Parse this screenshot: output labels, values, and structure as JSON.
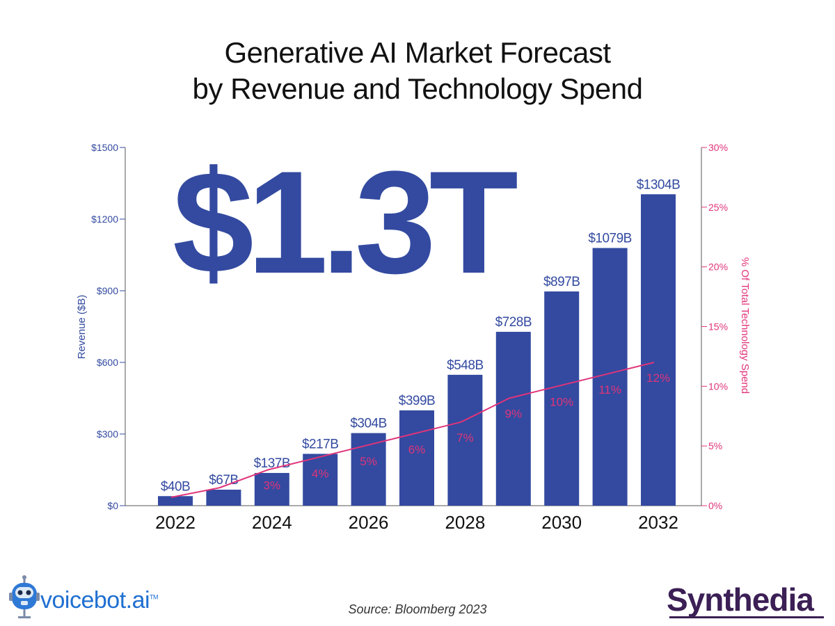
{
  "title_line1": "Generative AI Market Forecast",
  "title_line2": "by Revenue and Technology Spend",
  "headline_value": "$1.3T",
  "source": "Source: Bloomberg 2023",
  "logos": {
    "left_text": "voicebot.ai",
    "left_tm": "TM",
    "right_text": "Synthedia"
  },
  "colors": {
    "bar": "#334aa0",
    "line": "#e0347a",
    "axis_left": "#334aa0",
    "axis_right": "#e0347a"
  },
  "chart_data": {
    "type": "bar",
    "categories": [
      "2022",
      "2023",
      "2024",
      "2025",
      "2026",
      "2027",
      "2028",
      "2029",
      "2030",
      "2031",
      "2032"
    ],
    "x_tick_labels": [
      "2022",
      "2024",
      "2026",
      "2028",
      "2030",
      "2032"
    ],
    "series": [
      {
        "type": "bar",
        "axis": "left",
        "values": [
          40,
          67,
          137,
          217,
          304,
          399,
          548,
          728,
          897,
          1079,
          1304
        ],
        "data_labels": [
          "$40B",
          "$67B",
          "$137B",
          "$217B",
          "$304B",
          "$399B",
          "$548B",
          "$728B",
          "$897B",
          "$1079B",
          "$1304B"
        ]
      },
      {
        "type": "line",
        "axis": "right",
        "values": [
          0.7,
          1.5,
          3,
          4,
          5,
          6,
          7,
          9,
          10,
          11,
          12
        ],
        "data_labels": [
          "",
          "",
          "3%",
          "4%",
          "5%",
          "6%",
          "7%",
          "9%",
          "10%",
          "11%",
          "12%"
        ]
      }
    ],
    "ylabel": "Revenue ($B)",
    "ylabel_right": "% Of Total Technology Spend",
    "ylim": [
      0,
      1500
    ],
    "ylim_right": [
      0,
      30
    ],
    "y_ticks": [
      0,
      300,
      600,
      900,
      1200,
      1500
    ],
    "y_tick_labels": [
      "$0",
      "$300",
      "$600",
      "$900",
      "$1200",
      "$1500"
    ],
    "y_ticks_right": [
      0,
      5,
      10,
      15,
      20,
      25,
      30
    ],
    "y_tick_labels_right": [
      "0%",
      "5%",
      "10%",
      "15%",
      "20%",
      "25%",
      "30%"
    ],
    "grid": false
  }
}
